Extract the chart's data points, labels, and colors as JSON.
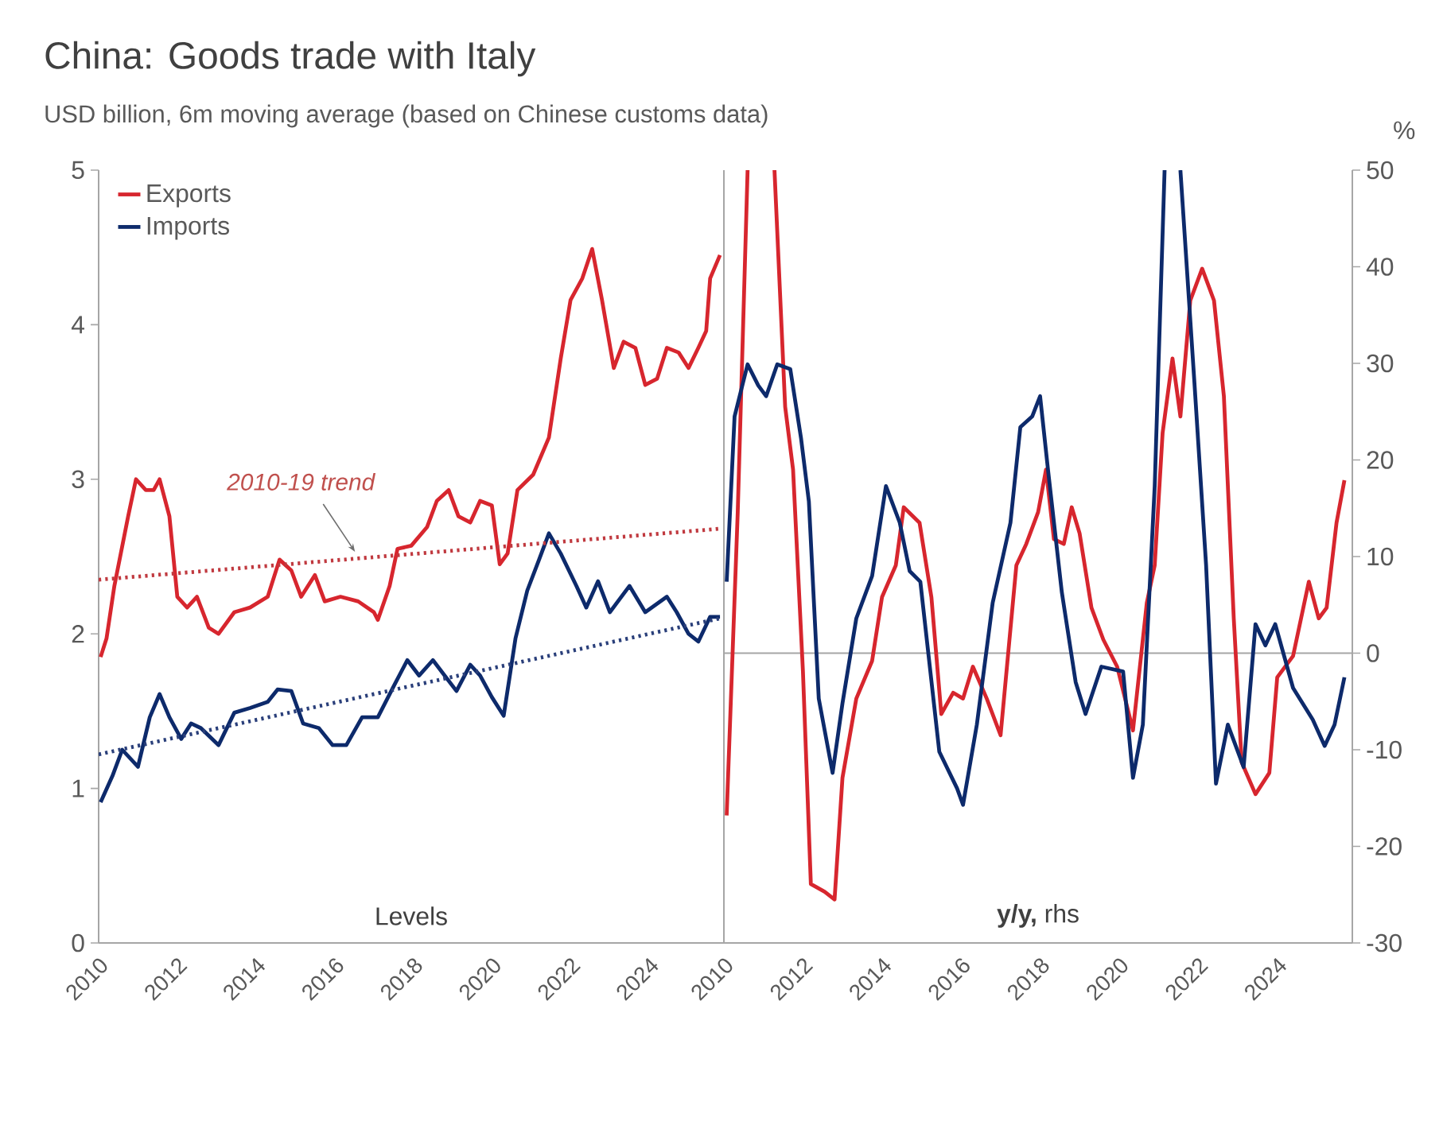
{
  "chart_data": [
    {
      "type": "line",
      "title": "China: Goods trade with Italy",
      "subtitle": "USD billion, 6m moving average (based on Chinese customs data)",
      "xlim": [
        2010,
        2025.9
      ],
      "xticks": [
        2010,
        2012,
        2014,
        2016,
        2018,
        2020,
        2022,
        2024
      ],
      "ylim": [
        0,
        5
      ],
      "yticks": [
        0,
        1,
        2,
        3,
        4,
        5
      ],
      "legend": "top left",
      "annotations": [
        {
          "text": "2010-19 trend",
          "x": 2016.6,
          "y": 2.49
        },
        "Levels"
      ],
      "series": [
        {
          "name": "Exports",
          "color": "#d7262e",
          "x": [
            2010.05,
            2010.2,
            2010.4,
            2010.75,
            2010.95,
            2011.2,
            2011.4,
            2011.55,
            2011.8,
            2012.0,
            2012.25,
            2012.5,
            2012.8,
            2013.05,
            2013.45,
            2013.85,
            2014.3,
            2014.6,
            2014.9,
            2015.15,
            2015.5,
            2015.75,
            2016.15,
            2016.6,
            2017.0,
            2017.1,
            2017.4,
            2017.6,
            2017.95,
            2018.35,
            2018.6,
            2018.9,
            2019.15,
            2019.45,
            2019.7,
            2020.0,
            2020.2,
            2020.4,
            2020.65,
            2021.05,
            2021.45,
            2021.75,
            2022.0,
            2022.3,
            2022.55,
            2022.8,
            2023.1,
            2023.35,
            2023.65,
            2023.9,
            2024.2,
            2024.45,
            2024.75,
            2025.0,
            2025.25,
            2025.45,
            2025.55,
            2025.8
          ],
          "values": [
            1.85,
            1.97,
            2.31,
            2.76,
            3.0,
            2.93,
            2.93,
            3.0,
            2.76,
            2.24,
            2.17,
            2.24,
            2.04,
            2.0,
            2.14,
            2.17,
            2.24,
            2.48,
            2.41,
            2.24,
            2.38,
            2.21,
            2.24,
            2.21,
            2.14,
            2.09,
            2.31,
            2.55,
            2.57,
            2.69,
            2.86,
            2.93,
            2.76,
            2.72,
            2.86,
            2.83,
            2.45,
            2.52,
            2.93,
            3.03,
            3.27,
            3.78,
            4.16,
            4.3,
            4.49,
            4.16,
            3.72,
            3.89,
            3.85,
            3.61,
            3.65,
            3.85,
            3.82,
            3.72,
            3.85,
            3.96,
            4.3,
            4.45
          ]
        },
        {
          "name": "Imports",
          "color": "#0d2a6b",
          "x": [
            2010.05,
            2010.35,
            2010.6,
            2011.0,
            2011.3,
            2011.55,
            2011.8,
            2012.1,
            2012.35,
            2012.6,
            2013.05,
            2013.45,
            2013.85,
            2014.3,
            2014.55,
            2014.9,
            2015.2,
            2015.6,
            2015.95,
            2016.3,
            2016.7,
            2017.1,
            2017.5,
            2017.85,
            2018.15,
            2018.5,
            2018.8,
            2019.1,
            2019.45,
            2019.7,
            2020.0,
            2020.3,
            2020.6,
            2020.9,
            2021.2,
            2021.45,
            2021.75,
            2022.15,
            2022.4,
            2022.7,
            2023.0,
            2023.5,
            2023.9,
            2024.45,
            2024.7,
            2025.0,
            2025.25,
            2025.55,
            2025.8
          ],
          "values": [
            0.91,
            1.08,
            1.25,
            1.14,
            1.46,
            1.61,
            1.46,
            1.32,
            1.42,
            1.39,
            1.28,
            1.49,
            1.52,
            1.56,
            1.64,
            1.63,
            1.42,
            1.39,
            1.28,
            1.28,
            1.46,
            1.46,
            1.66,
            1.83,
            1.73,
            1.83,
            1.73,
            1.63,
            1.8,
            1.73,
            1.59,
            1.47,
            1.97,
            2.28,
            2.48,
            2.65,
            2.52,
            2.31,
            2.17,
            2.34,
            2.14,
            2.31,
            2.14,
            2.24,
            2.14,
            2.0,
            1.95,
            2.11,
            2.11
          ]
        },
        {
          "type": "line",
          "color": "#c0393f",
          "line_style": "dotted",
          "x": [
            2010,
            2025.8
          ],
          "values": [
            2.35,
            2.68
          ]
        },
        {
          "type": "line",
          "color": "#2a3f7a",
          "line_style": "dotted",
          "x": [
            2010,
            2025.8
          ],
          "values": [
            1.22,
            2.1
          ]
        }
      ]
    },
    {
      "type": "line",
      "y2label": "%",
      "xlim": [
        2010,
        2025.9
      ],
      "xticks": [
        2010,
        2012,
        2014,
        2016,
        2018,
        2020,
        2022,
        2024
      ],
      "y2lim": [
        -30,
        50
      ],
      "y2ticks": [
        -30,
        -20,
        -10,
        0,
        10,
        20,
        30,
        40,
        50
      ],
      "annotations": [
        "**y/y,** rhs"
      ],
      "ref_lines": [
        {
          "axis": "y2",
          "value": 0,
          "color": "#a6a6a6"
        }
      ],
      "series": [
        {
          "axis": "y2",
          "color": "#d7262e",
          "x": [
            2010.07,
            2010.35,
            2010.6,
            2011.0,
            2011.28,
            2011.55,
            2011.75,
            2012.0,
            2012.2,
            2012.55,
            2012.8,
            2013.0,
            2013.35,
            2013.75,
            2014.0,
            2014.35,
            2014.55,
            2014.95,
            2015.25,
            2015.5,
            2015.8,
            2016.05,
            2016.3,
            2016.65,
            2017.0,
            2017.4,
            2017.65,
            2017.95,
            2018.15,
            2018.35,
            2018.6,
            2018.8,
            2019.0,
            2019.3,
            2019.6,
            2019.95,
            2020.35,
            2020.7,
            2020.9,
            2021.1,
            2021.35,
            2021.55,
            2021.8,
            2022.1,
            2022.4,
            2022.65,
            2022.9,
            2023.1,
            2023.45,
            2023.8,
            2024.0,
            2024.4,
            2024.8,
            2025.05,
            2025.25,
            2025.5,
            2025.7
          ],
          "values": [
            -16.8,
            14.6,
            50,
            null,
            50,
            25.5,
            19.0,
            -1.9,
            -23.9,
            -24.7,
            -25.5,
            -12.9,
            -4.7,
            -0.8,
            5.8,
            9.1,
            15.1,
            13.5,
            5.8,
            -6.3,
            -4.1,
            -4.7,
            -1.4,
            -4.7,
            -8.5,
            9.1,
            11.3,
            14.6,
            19.0,
            11.8,
            11.3,
            15.1,
            12.4,
            4.7,
            1.4,
            -1.4,
            -8.0,
            5.2,
            9.1,
            22.8,
            30.5,
            24.5,
            36.5,
            39.8,
            36.5,
            26.6,
            3.6,
            -11.3,
            -14.6,
            -12.4,
            -2.5,
            -0.3,
            7.4,
            3.6,
            4.7,
            13.5,
            17.9
          ]
        },
        {
          "axis": "y2",
          "color": "#0d2a6b",
          "x": [
            2010.07,
            2010.27,
            2010.6,
            2010.87,
            2011.07,
            2011.35,
            2011.68,
            2011.95,
            2012.15,
            2012.4,
            2012.75,
            2013.0,
            2013.35,
            2013.75,
            2014.1,
            2014.45,
            2014.7,
            2014.97,
            2015.45,
            2015.9,
            2016.05,
            2016.4,
            2016.8,
            2017.25,
            2017.5,
            2017.8,
            2018.0,
            2018.2,
            2018.55,
            2018.9,
            2019.15,
            2019.55,
            2020.1,
            2020.35,
            2020.6,
            2020.9,
            2021.15,
            2021.3,
            2021.55,
            2021.9,
            2022.2,
            2022.45,
            2022.75,
            2023.15,
            2023.45,
            2023.7,
            2023.95,
            2024.4,
            2024.9,
            2025.2,
            2025.45,
            2025.7
          ],
          "values": [
            7.4,
            24.5,
            29.9,
            27.7,
            26.6,
            29.9,
            29.4,
            22.3,
            15.7,
            -4.7,
            -12.4,
            -5.2,
            3.6,
            8.0,
            17.3,
            13.5,
            8.5,
            7.4,
            -10.2,
            -14.0,
            -15.7,
            -7.4,
            5.2,
            13.5,
            23.4,
            24.5,
            26.6,
            19.0,
            6.3,
            -3.0,
            -6.3,
            -1.4,
            -1.9,
            -12.9,
            -7.4,
            17.3,
            50,
            null,
            50,
            28.3,
            9.1,
            -13.5,
            -7.4,
            -11.8,
            3.0,
            0.8,
            3.0,
            -3.6,
            -6.9,
            -9.6,
            -7.4,
            -2.5
          ]
        }
      ]
    }
  ]
}
